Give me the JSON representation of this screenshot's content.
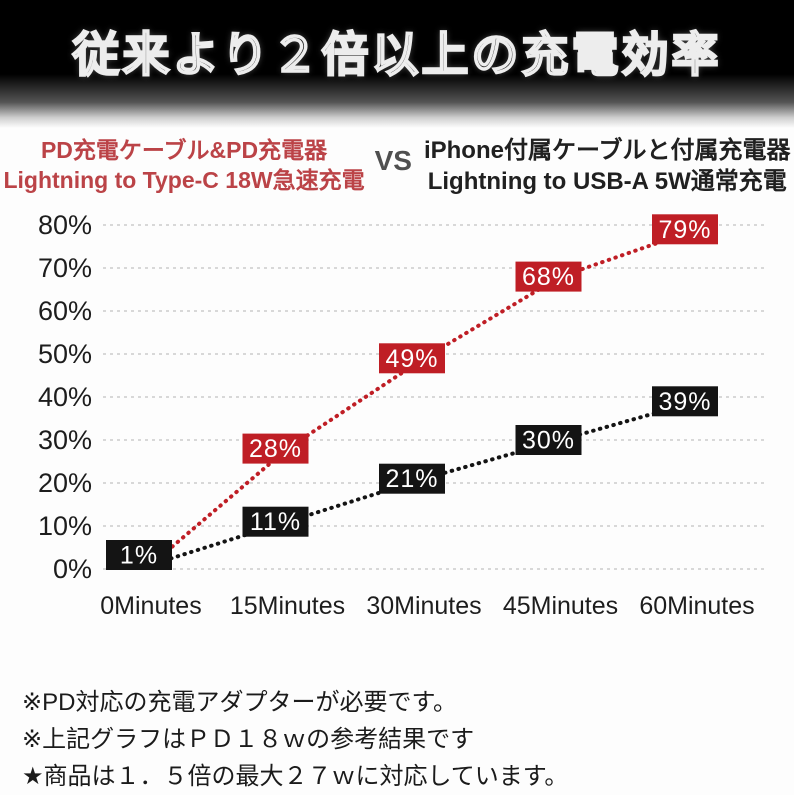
{
  "banner": {
    "title": "従来より２倍以上の充電効率"
  },
  "comparison_header": {
    "left": {
      "line1": "PD充電ケーブル&PD充電器",
      "line2": "Lightning to Type-C 18W急速充電",
      "color": "#bb4347"
    },
    "vs": "VS",
    "right": {
      "line1": "iPhone付属ケーブルと付属充電器",
      "line2": "Lightning to USB-A 5W通常充電",
      "color": "#202020"
    }
  },
  "chart_data": {
    "type": "line",
    "title": "",
    "xlabel": "",
    "ylabel": "",
    "x_labels": [
      "0Minutes",
      "15Minutes",
      "30Minutes",
      "45Minutes",
      "60Minutes"
    ],
    "y_ticks": [
      "0%",
      "10%",
      "20%",
      "30%",
      "40%",
      "50%",
      "60%",
      "70%",
      "80%"
    ],
    "ylim": [
      0,
      80
    ],
    "grid": "horizontal-dotted",
    "line_style": "dotted",
    "legend_position": "header-text-above-chart",
    "series": [
      {
        "key": "pd-fast-charge",
        "name": "Lightning to Type-C 18W急速充電",
        "color": "#bf1e25",
        "label_bg": "#bf1e25",
        "values": [
          1,
          28,
          49,
          68,
          79
        ],
        "labels": [
          null,
          "28%",
          "49%",
          "68%",
          "79%"
        ]
      },
      {
        "key": "standard-charge",
        "name": "Lightning to USB-A 5W通常充電",
        "color": "#141414",
        "label_bg": "#141414",
        "values": [
          1,
          11,
          21,
          30,
          39
        ],
        "labels": [
          "1%",
          "11%",
          "21%",
          "30%",
          "39%"
        ]
      }
    ]
  },
  "notes": [
    "※PD対応の充電アダプターが必要です。",
    "※上記グラフはＰＤ１８ｗの参考結果です",
    "★商品は１．５倍の最大２７ｗに対応しています。"
  ]
}
